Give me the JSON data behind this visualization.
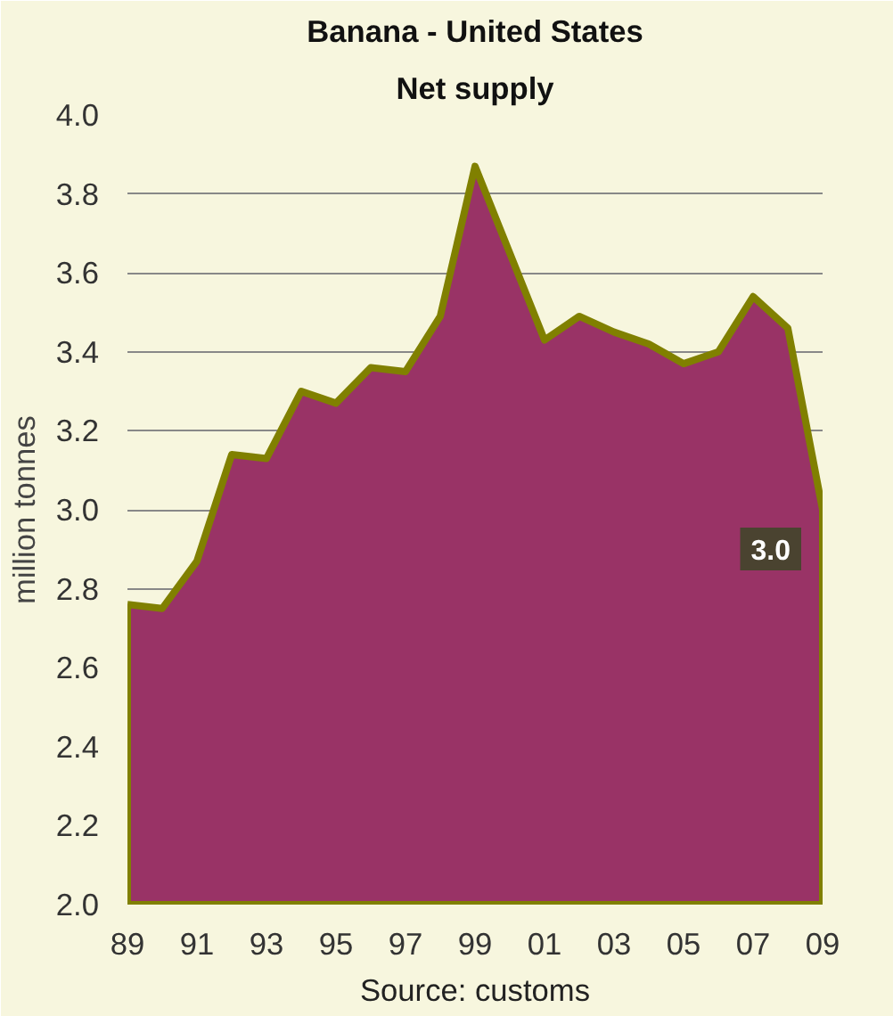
{
  "chart_data": {
    "type": "area",
    "title": "Banana - United States",
    "subtitle": "Net supply",
    "ylabel": "million tonnes",
    "x": [
      1989,
      1990,
      1991,
      1992,
      1993,
      1994,
      1995,
      1996,
      1997,
      1998,
      1999,
      2000,
      2001,
      2002,
      2003,
      2004,
      2005,
      2006,
      2007,
      2008,
      2009
    ],
    "series": [
      {
        "color": "#993366",
        "values": [
          2.76,
          2.75,
          2.87,
          3.14,
          3.13,
          3.3,
          3.27,
          3.36,
          3.35,
          3.49,
          3.87,
          3.65,
          3.43,
          3.49,
          3.45,
          3.42,
          3.37,
          3.4,
          3.54,
          3.46,
          3.0
        ],
        "value_labels": [
          null,
          null,
          null,
          null,
          null,
          null,
          null,
          null,
          null,
          null,
          null,
          null,
          null,
          null,
          null,
          null,
          null,
          null,
          null,
          null,
          "3.0"
        ]
      }
    ],
    "xlim": [
      1989,
      2009
    ],
    "xticks": [
      {
        "value": 1989,
        "label": "89"
      },
      {
        "value": 1991,
        "label": "91"
      },
      {
        "value": 1993,
        "label": "93"
      },
      {
        "value": 1995,
        "label": "95"
      },
      {
        "value": 1997,
        "label": "97"
      },
      {
        "value": 1999,
        "label": "99"
      },
      {
        "value": 2001,
        "label": "01"
      },
      {
        "value": 2003,
        "label": "03"
      },
      {
        "value": 2005,
        "label": "05"
      },
      {
        "value": 2007,
        "label": "07"
      },
      {
        "value": 2009,
        "label": "09"
      }
    ],
    "ylim": [
      2,
      4
    ],
    "yticks": [
      {
        "value": 2,
        "label": "2.0"
      },
      {
        "value": 2.2,
        "label": "2.2"
      },
      {
        "value": 2.4,
        "label": "2.4"
      },
      {
        "value": 2.6,
        "label": "2.6"
      },
      {
        "value": 2.8,
        "label": "2.8"
      },
      {
        "value": 3,
        "label": "3.0"
      },
      {
        "value": 3.2,
        "label": "3.2"
      },
      {
        "value": 3.4,
        "label": "3.4"
      },
      {
        "value": 3.6,
        "label": "3.6"
      },
      {
        "value": 3.8,
        "label": "3.8"
      },
      {
        "value": 4,
        "label": "4.0"
      }
    ],
    "grid": "y",
    "annotations": [
      "Source: customs"
    ]
  }
}
